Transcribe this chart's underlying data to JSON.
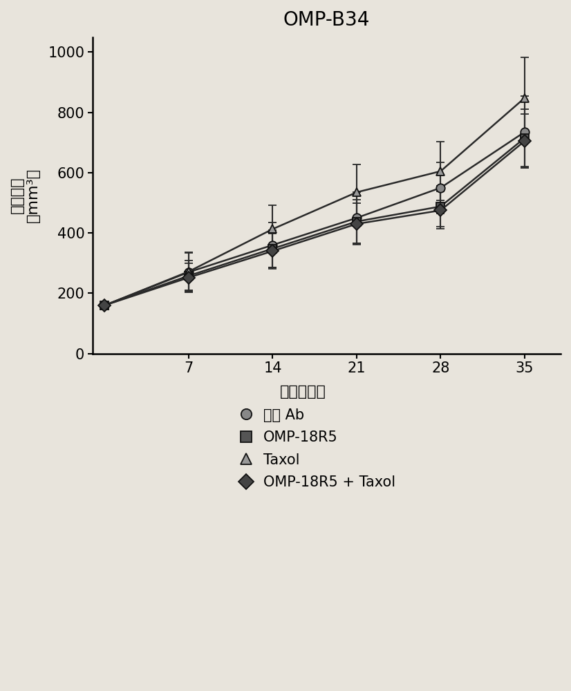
{
  "title": "OMP-B34",
  "xlabel": "治疗后天数",
  "ylabel_line1": "肿瘤体积",
  "ylabel_line2": "（mm³）",
  "x": [
    0,
    7,
    14,
    21,
    28,
    35
  ],
  "series": {
    "对照 Ab": {
      "y": [
        160,
        270,
        360,
        450,
        550,
        735
      ],
      "yerr": [
        0,
        65,
        75,
        85,
        85,
        120
      ],
      "marker": "o",
      "color": "#2a2a2a",
      "linestyle": "-"
    },
    "OMP-18R5": {
      "y": [
        160,
        258,
        348,
        438,
        488,
        715
      ],
      "yerr": [
        0,
        50,
        62,
        72,
        68,
        95
      ],
      "marker": "s",
      "color": "#2a2a2a",
      "linestyle": "-"
    },
    "Taxol": {
      "y": [
        160,
        272,
        413,
        535,
        605,
        848
      ],
      "yerr": [
        0,
        62,
        78,
        92,
        98,
        135
      ],
      "marker": "^",
      "color": "#2a2a2a",
      "linestyle": "-"
    },
    "OMP-18R5 + Taxol": {
      "y": [
        160,
        252,
        340,
        430,
        475,
        705
      ],
      "yerr": [
        0,
        48,
        58,
        68,
        62,
        90
      ],
      "marker": "D",
      "color": "#2a2a2a",
      "linestyle": "-"
    }
  },
  "ylim": [
    0,
    1050
  ],
  "xlim": [
    -1,
    38
  ],
  "yticks": [
    0,
    200,
    400,
    600,
    800,
    1000
  ],
  "xticks": [
    7,
    14,
    21,
    28,
    35
  ],
  "figsize": [
    8.26,
    10.0
  ],
  "dpi": 100,
  "background_color": "#e8e4dc",
  "title_fontsize": 20,
  "tick_fontsize": 15,
  "legend_title_fontsize": 16,
  "legend_fontsize": 15
}
